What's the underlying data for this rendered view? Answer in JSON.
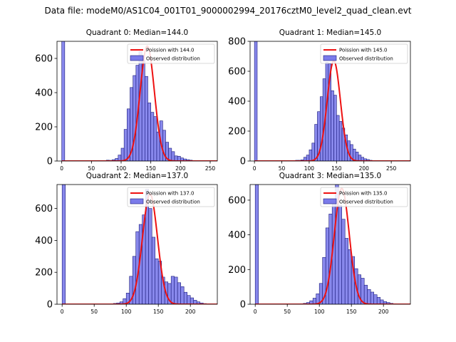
{
  "figure": {
    "suptitle": "Data file: modeM0/AS1C04_001T01_9000002994_20176cztM0_level2_quad_clean.evt",
    "legend_observed": "Observed distribution"
  },
  "colors": {
    "hist_fill": "#7b7bea",
    "hist_edge": "#1a1a7a",
    "poisson_line": "#ee1111"
  },
  "chart_data": [
    {
      "type": "bar",
      "title": "Quadrant 0: Median=144.0",
      "median": 144.0,
      "legend_poisson": "Poission with 144.0",
      "legend_observed": "Observed distribution",
      "bin_width": 5,
      "bin_start": 0,
      "values": [
        720,
        0,
        0,
        0,
        0,
        0,
        0,
        0,
        0,
        0,
        0,
        0,
        0,
        0,
        2,
        5,
        4,
        8,
        15,
        35,
        75,
        185,
        305,
        430,
        500,
        560,
        640,
        590,
        495,
        340,
        285,
        260,
        170,
        235,
        180,
        110,
        75,
        55,
        30,
        28,
        18,
        12,
        8,
        5,
        3,
        2,
        1,
        0,
        0,
        0,
        0
      ],
      "xlim": [
        -8,
        262
      ],
      "ylim": [
        0,
        700
      ],
      "xticks": [
        0,
        50,
        100,
        150,
        200,
        250
      ],
      "yticks": [
        0,
        200,
        400,
        600
      ],
      "poisson_lambda": 144.0,
      "poisson_peak": 672
    },
    {
      "type": "bar",
      "title": "Quadrant 1: Median=145.0",
      "median": 145.0,
      "legend_poisson": "Poission with 145.0",
      "legend_observed": "Observed distribution",
      "bin_width": 5,
      "bin_start": 0,
      "values": [
        800,
        0,
        0,
        0,
        0,
        0,
        0,
        0,
        0,
        0,
        0,
        0,
        0,
        0,
        2,
        5,
        5,
        8,
        25,
        40,
        75,
        120,
        245,
        330,
        430,
        550,
        660,
        650,
        470,
        440,
        305,
        265,
        220,
        175,
        135,
        110,
        80,
        60,
        40,
        25,
        15,
        10,
        5,
        3,
        2,
        1,
        0,
        0,
        0,
        0,
        0,
        0,
        0,
        0,
        0,
        0
      ],
      "xlim": [
        -8,
        285
      ],
      "ylim": [
        0,
        800
      ],
      "xticks": [
        0,
        50,
        100,
        150,
        200,
        250
      ],
      "yticks": [
        0,
        200,
        400,
        600,
        800
      ],
      "poisson_lambda": 145.0,
      "poisson_peak": 670
    },
    {
      "type": "bar",
      "title": "Quadrant 2: Median=137.0",
      "median": 137.0,
      "legend_poisson": "Poission with 137.0",
      "legend_observed": "Observed distribution",
      "bin_width": 5,
      "bin_start": 0,
      "values": [
        750,
        0,
        0,
        0,
        0,
        0,
        0,
        0,
        0,
        0,
        0,
        0,
        0,
        0,
        0,
        2,
        5,
        8,
        15,
        35,
        70,
        175,
        300,
        455,
        500,
        560,
        720,
        600,
        420,
        285,
        270,
        170,
        140,
        130,
        175,
        170,
        135,
        110,
        75,
        55,
        40,
        25,
        15,
        8,
        4,
        2,
        1,
        0
      ],
      "xlim": [
        -8,
        242
      ],
      "ylim": [
        0,
        750
      ],
      "xticks": [
        0,
        50,
        100,
        150,
        200
      ],
      "yticks": [
        0,
        200,
        400,
        600
      ],
      "poisson_lambda": 137.0,
      "poisson_peak": 690
    },
    {
      "type": "bar",
      "title": "Quadrant 3: Median=135.0",
      "median": 135.0,
      "legend_poisson": "Poission with 135.0",
      "legend_observed": "Observed distribution",
      "bin_width": 5,
      "bin_start": 0,
      "values": [
        690,
        0,
        0,
        0,
        0,
        0,
        0,
        0,
        0,
        0,
        0,
        1,
        2,
        2,
        3,
        5,
        10,
        20,
        35,
        60,
        120,
        270,
        440,
        520,
        600,
        690,
        570,
        490,
        380,
        315,
        275,
        205,
        170,
        150,
        110,
        85,
        70,
        55,
        40,
        25,
        15,
        10,
        5,
        3,
        1,
        0
      ],
      "xlim": [
        -8,
        242
      ],
      "ylim": [
        0,
        690
      ],
      "xticks": [
        0,
        50,
        100,
        150,
        200
      ],
      "yticks": [
        0,
        200,
        400,
        600
      ],
      "poisson_lambda": 135.0,
      "poisson_peak": 668
    }
  ]
}
